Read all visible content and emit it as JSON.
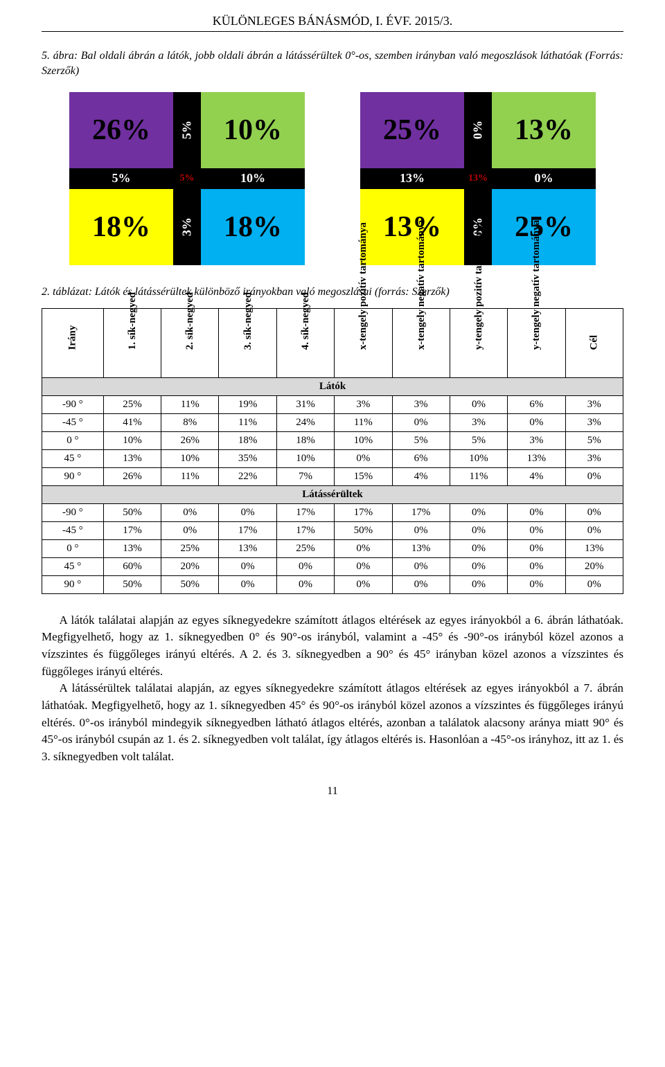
{
  "journal_header": "KÜLÖNLEGES BÁNÁSMÓD, I. ÉVF. 2015/3.",
  "fig5_caption": "5. ábra: Bal oldali ábrán a látók, jobb oldali ábrán a látássérültek 0°-os, szemben irányban való megoszlások láthatóak (Forrás: Szerzők)",
  "chart_left": {
    "tl": "26%",
    "tc": "5%",
    "tr": "10%",
    "ml": "5%",
    "mc": "5%",
    "mr": "10%",
    "bl": "18%",
    "bc": "3%",
    "br": "18%"
  },
  "chart_right": {
    "tl": "25%",
    "tc": "0%",
    "tr": "13%",
    "ml": "13%",
    "mc": "13%",
    "mr": "0%",
    "bl": "13%",
    "bc": "0%",
    "br": "25%"
  },
  "table_caption": "2. táblázat: Látók és látássérültek különböző irányokban való megoszlásai (forrás: Szerzők)",
  "table_headers": [
    "Irány",
    "1. sík-negyed",
    "2. sík-negyed",
    "3. sík-negyed",
    "4. sík-negyed",
    "x-tengely pozitív tartománya",
    "x-tengely negatív tartománya",
    "y-tengely pozitív tartománya",
    "y-tengely negatív tartománya",
    "Cél"
  ],
  "section_latok": "Látók",
  "section_latasserultek": "Látássérültek",
  "latok_rows": [
    [
      "-90 °",
      "25%",
      "11%",
      "19%",
      "31%",
      "3%",
      "3%",
      "0%",
      "6%",
      "3%"
    ],
    [
      "-45 °",
      "41%",
      "8%",
      "11%",
      "24%",
      "11%",
      "0%",
      "3%",
      "0%",
      "3%"
    ],
    [
      "0 °",
      "10%",
      "26%",
      "18%",
      "18%",
      "10%",
      "5%",
      "5%",
      "3%",
      "5%"
    ],
    [
      "45 °",
      "13%",
      "10%",
      "35%",
      "10%",
      "0%",
      "6%",
      "10%",
      "13%",
      "3%"
    ],
    [
      "90 °",
      "26%",
      "11%",
      "22%",
      "7%",
      "15%",
      "4%",
      "11%",
      "4%",
      "0%"
    ]
  ],
  "latasserultek_rows": [
    [
      "-90 °",
      "50%",
      "0%",
      "0%",
      "17%",
      "17%",
      "17%",
      "0%",
      "0%",
      "0%"
    ],
    [
      "-45 °",
      "17%",
      "0%",
      "17%",
      "17%",
      "50%",
      "0%",
      "0%",
      "0%",
      "0%"
    ],
    [
      "0 °",
      "13%",
      "25%",
      "13%",
      "25%",
      "0%",
      "13%",
      "0%",
      "0%",
      "13%"
    ],
    [
      "45 °",
      "60%",
      "20%",
      "0%",
      "0%",
      "0%",
      "0%",
      "0%",
      "0%",
      "20%"
    ],
    [
      "90 °",
      "50%",
      "50%",
      "0%",
      "0%",
      "0%",
      "0%",
      "0%",
      "0%",
      "0%"
    ]
  ],
  "para1": "A látók találatai alapján az egyes síknegyedekre számított átlagos eltérések az egyes irányokból a 6. ábrán láthatóak. Megfigyelhető, hogy az 1. síknegyedben 0° és 90°-os irányból, valamint a -45° és -90°-os irányból közel azonos a vízszintes és függőleges irányú eltérés. A 2. és 3. síknegyedben a 90° és 45° irányban közel azonos a vízszintes és függőleges irányú eltérés.",
  "para2": "A látássérültek találatai alapján, az egyes síknegyedekre számított átlagos eltérések az egyes irányokból a 7. ábrán láthatóak. Megfigyelhető, hogy az 1. síknegyedben 45° és 90°-os irányból közel azonos a vízszintes és függőleges irányú eltérés. 0°-os irányból mindegyik síknegyedben látható átlagos eltérés, azonban a találatok alacsony aránya miatt 90° és 45°-os irányból csupán az 1. és 2. síknegyedben volt találat, így átlagos eltérés is. Hasonlóan a -45°-os irányhoz, itt az 1. és 3. síknegyedben volt találat.",
  "page_number": "11"
}
